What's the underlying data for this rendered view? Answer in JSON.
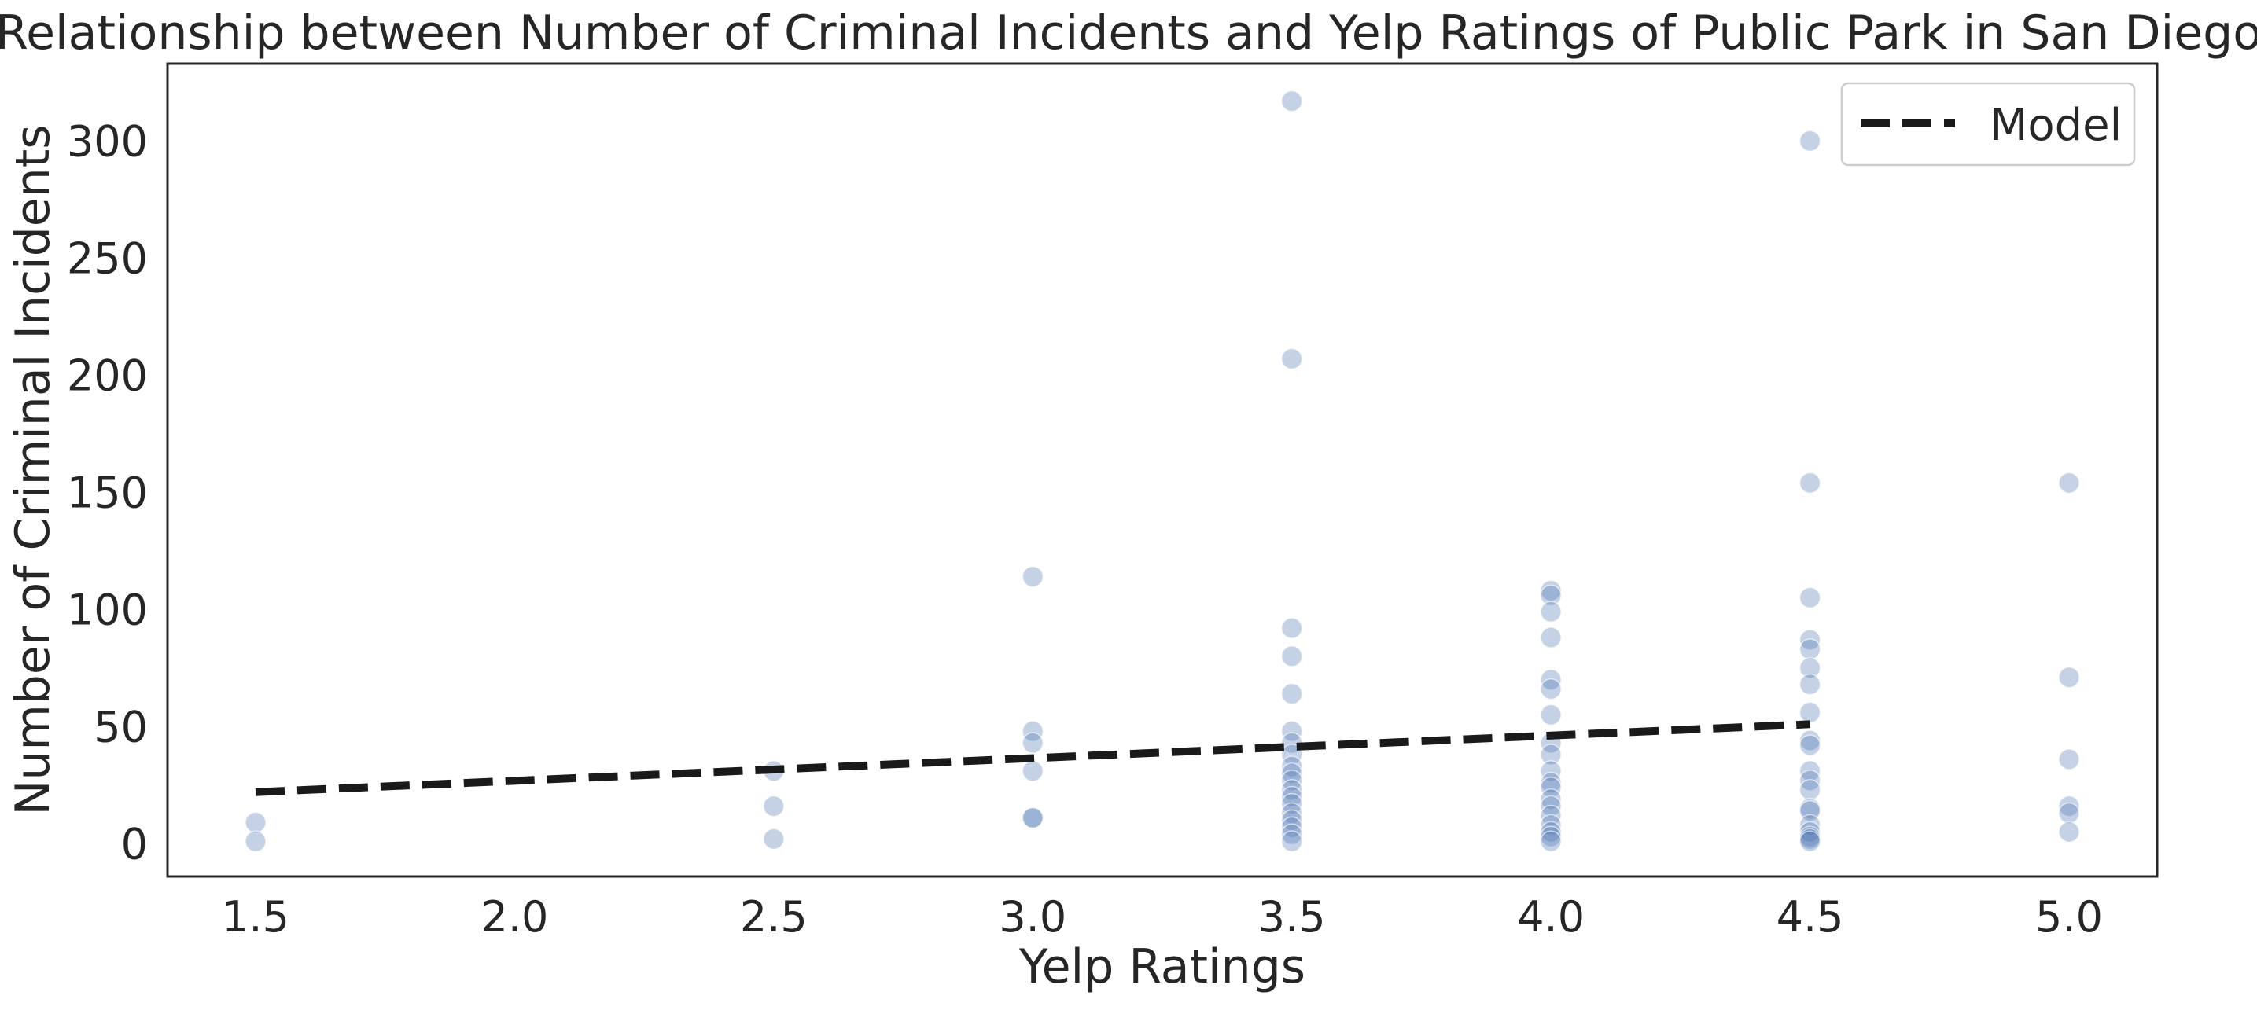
{
  "chart_data": {
    "type": "scatter",
    "title": "Relationship between Number of Criminal Incidents and Yelp Ratings of Public Park in San Diego",
    "xlabel": "Yelp Ratings",
    "ylabel": "Number of Criminal Incidents",
    "xlim": [
      1.33,
      5.17
    ],
    "ylim": [
      -14,
      333
    ],
    "xticks": [
      "1.5",
      "2.0",
      "2.5",
      "3.0",
      "3.5",
      "4.0",
      "4.5",
      "5.0"
    ],
    "yticks": [
      "0",
      "50",
      "100",
      "150",
      "200",
      "250",
      "300"
    ],
    "grid": false,
    "legend": {
      "placement": "top-right",
      "entries": [
        {
          "label": "Model",
          "style": "dashed-line"
        }
      ]
    },
    "colors": {
      "points": "#4c72b0",
      "model": "#1a1a1a"
    },
    "point_alpha": 0.32,
    "points": [
      {
        "x": 1.5,
        "y": 9
      },
      {
        "x": 1.5,
        "y": 1
      },
      {
        "x": 2.5,
        "y": 31
      },
      {
        "x": 2.5,
        "y": 16
      },
      {
        "x": 2.5,
        "y": 2
      },
      {
        "x": 3.0,
        "y": 114
      },
      {
        "x": 3.0,
        "y": 48
      },
      {
        "x": 3.0,
        "y": 43
      },
      {
        "x": 3.0,
        "y": 31
      },
      {
        "x": 3.0,
        "y": 11
      },
      {
        "x": 3.0,
        "y": 11
      },
      {
        "x": 3.5,
        "y": 317
      },
      {
        "x": 3.5,
        "y": 207
      },
      {
        "x": 3.5,
        "y": 92
      },
      {
        "x": 3.5,
        "y": 80
      },
      {
        "x": 3.5,
        "y": 64
      },
      {
        "x": 3.5,
        "y": 48
      },
      {
        "x": 3.5,
        "y": 43
      },
      {
        "x": 3.5,
        "y": 38
      },
      {
        "x": 3.5,
        "y": 33
      },
      {
        "x": 3.5,
        "y": 30
      },
      {
        "x": 3.5,
        "y": 27
      },
      {
        "x": 3.5,
        "y": 23
      },
      {
        "x": 3.5,
        "y": 20
      },
      {
        "x": 3.5,
        "y": 17
      },
      {
        "x": 3.5,
        "y": 13
      },
      {
        "x": 3.5,
        "y": 10
      },
      {
        "x": 3.5,
        "y": 7
      },
      {
        "x": 3.5,
        "y": 4
      },
      {
        "x": 3.5,
        "y": 1
      },
      {
        "x": 4.0,
        "y": 108
      },
      {
        "x": 4.0,
        "y": 106
      },
      {
        "x": 4.0,
        "y": 99
      },
      {
        "x": 4.0,
        "y": 88
      },
      {
        "x": 4.0,
        "y": 70
      },
      {
        "x": 4.0,
        "y": 66
      },
      {
        "x": 4.0,
        "y": 55
      },
      {
        "x": 4.0,
        "y": 43
      },
      {
        "x": 4.0,
        "y": 38
      },
      {
        "x": 4.0,
        "y": 31
      },
      {
        "x": 4.0,
        "y": 26
      },
      {
        "x": 4.0,
        "y": 24
      },
      {
        "x": 4.0,
        "y": 19
      },
      {
        "x": 4.0,
        "y": 16
      },
      {
        "x": 4.0,
        "y": 12
      },
      {
        "x": 4.0,
        "y": 8
      },
      {
        "x": 4.0,
        "y": 5
      },
      {
        "x": 4.0,
        "y": 3
      },
      {
        "x": 4.0,
        "y": 1
      },
      {
        "x": 4.5,
        "y": 300
      },
      {
        "x": 4.5,
        "y": 154
      },
      {
        "x": 4.5,
        "y": 105
      },
      {
        "x": 4.5,
        "y": 87
      },
      {
        "x": 4.5,
        "y": 83
      },
      {
        "x": 4.5,
        "y": 75
      },
      {
        "x": 4.5,
        "y": 68
      },
      {
        "x": 4.5,
        "y": 56
      },
      {
        "x": 4.5,
        "y": 44
      },
      {
        "x": 4.5,
        "y": 42
      },
      {
        "x": 4.5,
        "y": 31
      },
      {
        "x": 4.5,
        "y": 27
      },
      {
        "x": 4.5,
        "y": 23
      },
      {
        "x": 4.5,
        "y": 15
      },
      {
        "x": 4.5,
        "y": 14
      },
      {
        "x": 4.5,
        "y": 8
      },
      {
        "x": 4.5,
        "y": 5
      },
      {
        "x": 4.5,
        "y": 3
      },
      {
        "x": 4.5,
        "y": 2
      },
      {
        "x": 4.5,
        "y": 1
      },
      {
        "x": 5.0,
        "y": 154
      },
      {
        "x": 5.0,
        "y": 71
      },
      {
        "x": 5.0,
        "y": 36
      },
      {
        "x": 5.0,
        "y": 16
      },
      {
        "x": 5.0,
        "y": 13
      },
      {
        "x": 5.0,
        "y": 5
      }
    ],
    "model": {
      "name": "Model",
      "x": [
        1.5,
        4.5
      ],
      "y": [
        22,
        51
      ]
    }
  }
}
